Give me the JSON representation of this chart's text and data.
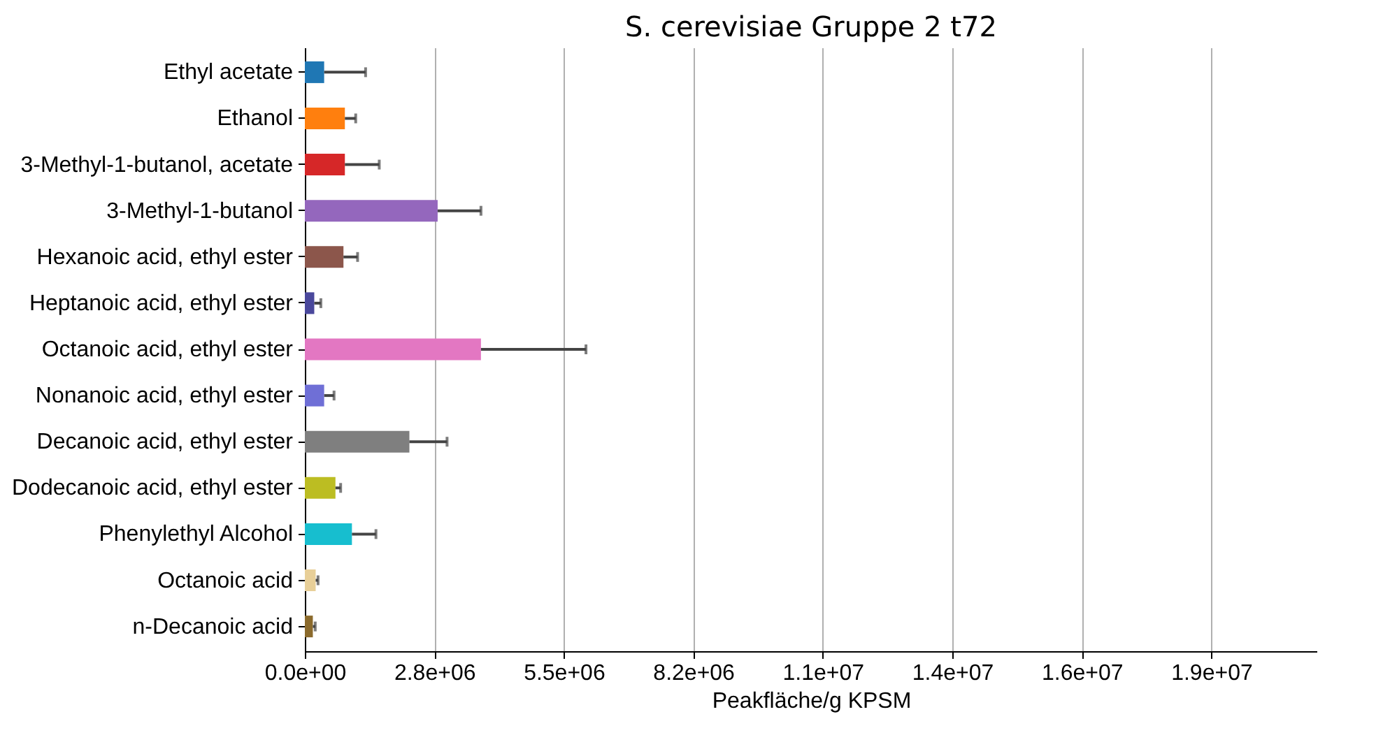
{
  "chart_data": {
    "type": "bar",
    "orientation": "horizontal",
    "title": "S. cerevisiae Gruppe 2 t72",
    "xlabel": "Peakfläche/g KPSM",
    "categories": [
      "Ethyl acetate",
      "Ethanol",
      "3-Methyl-1-butanol, acetate",
      "3-Methyl-1-butanol",
      "Hexanoic acid, ethyl ester",
      "Heptanoic acid, ethyl ester",
      "Octanoic acid, ethyl ester",
      "Nonanoic acid, ethyl ester",
      "Decanoic acid, ethyl ester",
      "Dodecanoic acid, ethyl ester",
      "Phenylethyl Alcohol",
      "Octanoic acid",
      "n-Decanoic acid"
    ],
    "values": [
      410000,
      850000,
      850000,
      2820000,
      820000,
      200000,
      3740000,
      410000,
      2220000,
      650000,
      1000000,
      230000,
      170000
    ],
    "errors": [
      [
        410000,
        1290000
      ],
      [
        850000,
        1080000
      ],
      [
        850000,
        1580000
      ],
      [
        2820000,
        3740000
      ],
      [
        820000,
        1120000
      ],
      [
        200000,
        340000
      ],
      [
        3740000,
        5970000
      ],
      [
        410000,
        620000
      ],
      [
        2220000,
        3020000
      ],
      [
        650000,
        760000
      ],
      [
        1000000,
        1510000
      ],
      [
        230000,
        280000
      ],
      [
        170000,
        220000
      ]
    ],
    "colors": [
      "#1f77b4",
      "#ff7f0e",
      "#d62728",
      "#9467bd",
      "#8c564b",
      "#4a489c",
      "#e377c2",
      "#6f6fd6",
      "#7f7f7f",
      "#bcbd22",
      "#17becf",
      "#e8cf98",
      "#8b6a2c"
    ],
    "xlim": [
      0,
      21500000
    ],
    "xticks": [
      {
        "value": 0,
        "label": "0.0e+00"
      },
      {
        "value": 2750000,
        "label": "2.8e+06"
      },
      {
        "value": 5500000,
        "label": "5.5e+06"
      },
      {
        "value": 8250000,
        "label": "8.2e+06"
      },
      {
        "value": 11000000,
        "label": "1.1e+07"
      },
      {
        "value": 13750000,
        "label": "1.4e+07"
      },
      {
        "value": 16500000,
        "label": "1.6e+07"
      },
      {
        "value": 19250000,
        "label": "1.9e+07"
      }
    ],
    "grid": "x"
  }
}
